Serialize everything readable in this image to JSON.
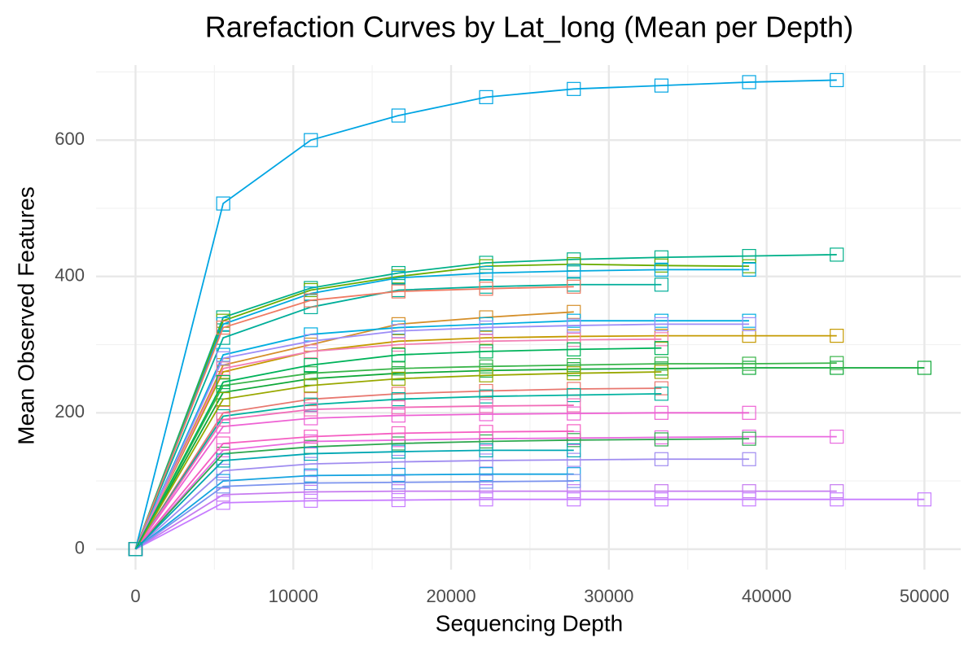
{
  "chart_data": {
    "type": "line",
    "title": "Rarefaction Curves by Lat_long (Mean per Depth)",
    "x_label": "Sequencing Depth",
    "y_label": "Mean Observed Features",
    "x": [
      0,
      5556,
      11111,
      16667,
      22222,
      27778,
      33333,
      38889,
      44444,
      50000
    ],
    "xlim": [
      -2500,
      52300
    ],
    "ylim": [
      -30,
      710
    ],
    "xticks": [
      0,
      10000,
      20000,
      30000,
      40000,
      50000
    ],
    "yticks": [
      0,
      200,
      400,
      600
    ],
    "xminor": [
      5000,
      15000,
      25000,
      35000,
      45000
    ],
    "yminor": [
      100,
      300,
      500,
      700
    ],
    "grid": true,
    "marker": "open-square",
    "series": [
      {
        "color": "#00a5e3",
        "values": [
          0,
          507,
          600,
          636,
          663,
          675,
          680,
          685,
          688,
          null
        ]
      },
      {
        "color": "#00b089",
        "values": [
          0,
          340,
          383,
          405,
          420,
          425,
          428,
          430,
          432,
          null
        ]
      },
      {
        "color": "#6aac00",
        "values": [
          0,
          335,
          380,
          400,
          415,
          418,
          416,
          415,
          null,
          null
        ]
      },
      {
        "color": "#00a9de",
        "values": [
          0,
          330,
          375,
          398,
          405,
          408,
          410,
          410,
          null,
          null
        ]
      },
      {
        "color": "#00ae9a",
        "values": [
          0,
          310,
          355,
          380,
          385,
          388,
          388,
          null,
          null,
          null
        ]
      },
      {
        "color": "#ef7a63",
        "values": [
          0,
          325,
          365,
          378,
          382,
          385,
          null,
          null,
          null,
          null
        ]
      },
      {
        "color": "#d58f2a",
        "values": [
          0,
          270,
          300,
          330,
          340,
          348,
          null,
          null,
          null,
          null
        ]
      },
      {
        "color": "#00aee0",
        "values": [
          0,
          285,
          315,
          325,
          330,
          335,
          335,
          335,
          null,
          null
        ]
      },
      {
        "color": "#c59a00",
        "values": [
          0,
          260,
          290,
          305,
          310,
          312,
          313,
          313,
          313,
          null
        ]
      },
      {
        "color": "#0fa838",
        "values": [
          0,
          230,
          250,
          258,
          262,
          264,
          265,
          266,
          266,
          266
        ]
      },
      {
        "color": "#3ab54a",
        "values": [
          0,
          240,
          258,
          265,
          268,
          270,
          272,
          272,
          273,
          null
        ]
      },
      {
        "color": "#9d8df7",
        "values": [
          0,
          280,
          305,
          320,
          325,
          328,
          330,
          330,
          null,
          null
        ]
      },
      {
        "color": "#f27fb4",
        "values": [
          0,
          265,
          290,
          300,
          305,
          307,
          308,
          null,
          null,
          null
        ]
      },
      {
        "color": "#e8776f",
        "values": [
          0,
          200,
          220,
          228,
          232,
          235,
          236,
          null,
          null,
          null
        ]
      },
      {
        "color": "#00b2a0",
        "values": [
          0,
          195,
          212,
          220,
          224,
          226,
          228,
          null,
          null,
          null
        ]
      },
      {
        "color": "#ee62d4",
        "values": [
          0,
          180,
          192,
          196,
          198,
          199,
          200,
          200,
          null,
          null
        ]
      },
      {
        "color": "#f26bb8",
        "values": [
          0,
          190,
          205,
          208,
          210,
          211,
          null,
          null,
          null,
          null
        ]
      },
      {
        "color": "#e96ae0",
        "values": [
          0,
          145,
          158,
          160,
          162,
          163,
          164,
          165,
          165,
          null
        ]
      },
      {
        "color": "#2ea74f",
        "values": [
          0,
          140,
          150,
          155,
          158,
          160,
          161,
          162,
          null,
          null
        ]
      },
      {
        "color": "#9f8cf0",
        "values": [
          0,
          115,
          125,
          128,
          130,
          131,
          132,
          132,
          null,
          null
        ]
      },
      {
        "color": "#f55ec2",
        "values": [
          0,
          155,
          165,
          170,
          172,
          173,
          null,
          null,
          null,
          null
        ]
      },
      {
        "color": "#14a3e0",
        "values": [
          0,
          100,
          108,
          109,
          110,
          110,
          null,
          null,
          null,
          null
        ]
      },
      {
        "color": "#c67bf0",
        "values": [
          0,
          80,
          84,
          85,
          85,
          85,
          85,
          85,
          85,
          null
        ]
      },
      {
        "color": "#c77cff",
        "values": [
          0,
          68,
          71,
          72,
          73,
          73,
          73,
          73,
          73,
          73
        ]
      },
      {
        "color": "#7b93ee",
        "values": [
          0,
          92,
          97,
          98,
          99,
          100,
          null,
          null,
          null,
          null
        ]
      },
      {
        "color": "#99a800",
        "values": [
          0,
          220,
          240,
          250,
          255,
          258,
          260,
          null,
          null,
          null
        ]
      },
      {
        "color": "#00b35a",
        "values": [
          0,
          245,
          270,
          285,
          290,
          293,
          295,
          null,
          null,
          null
        ]
      },
      {
        "color": "#00a7b3",
        "values": [
          0,
          130,
          140,
          143,
          145,
          145,
          null,
          null,
          null,
          null
        ]
      }
    ]
  }
}
